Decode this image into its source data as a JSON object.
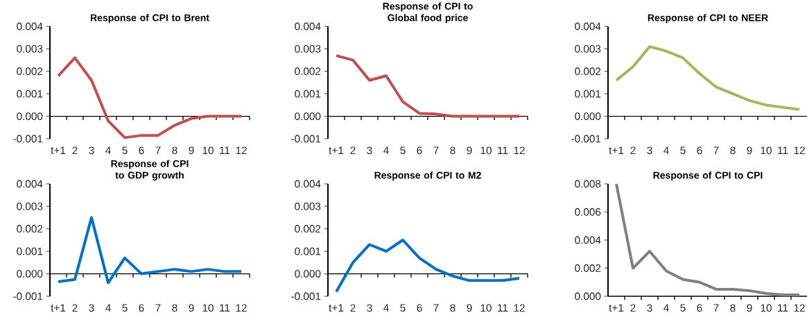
{
  "chart_data": [
    {
      "type": "line",
      "title": "Response of CPI to Brent",
      "categories": [
        "t+1",
        "2",
        "3",
        "4",
        "5",
        "6",
        "7",
        "8",
        "9",
        "10",
        "11",
        "12"
      ],
      "values": [
        0.0018,
        0.0026,
        0.0016,
        -0.0002,
        -0.00095,
        -0.00085,
        -0.00085,
        -0.0004,
        -0.0001,
        0.0,
        0.0,
        0.0
      ],
      "color": "#c0504d",
      "ylim": [
        -0.001,
        0.004
      ],
      "yticks": [
        {
          "value": -0.001,
          "label": "-0.001"
        },
        {
          "value": 0,
          "label": "0.000"
        },
        {
          "value": 0.001,
          "label": "0.001"
        },
        {
          "value": 0.002,
          "label": "0.002"
        },
        {
          "value": 0.003,
          "label": "0.003"
        },
        {
          "value": 0.004,
          "label": "0.004"
        }
      ]
    },
    {
      "type": "line",
      "title": "Response of CPI to Global food price",
      "categories": [
        "t+1",
        "2",
        "3",
        "4",
        "5",
        "6",
        "7",
        "8",
        "9",
        "10",
        "11",
        "12"
      ],
      "values": [
        0.0027,
        0.0025,
        0.0016,
        0.0018,
        0.00065,
        0.00013,
        0.0001,
        0.0,
        0.0,
        0.0,
        0.0,
        0.0
      ],
      "color": "#c0504d",
      "ylim": [
        -0.001,
        0.004
      ],
      "yticks": [
        {
          "value": -0.001,
          "label": "-0.001"
        },
        {
          "value": 0,
          "label": "0.000"
        },
        {
          "value": 0.001,
          "label": "0.001"
        },
        {
          "value": 0.002,
          "label": "0.002"
        },
        {
          "value": 0.003,
          "label": "0.003"
        },
        {
          "value": 0.004,
          "label": "0.004"
        }
      ]
    },
    {
      "type": "line",
      "title": "Response of CPI to NEER",
      "categories": [
        "t+1",
        "2",
        "3",
        "4",
        "5",
        "6",
        "7",
        "8",
        "9",
        "10",
        "11",
        "12"
      ],
      "values": [
        0.0016,
        0.0022,
        0.0031,
        0.0029,
        0.0026,
        0.0019,
        0.0013,
        0.001,
        0.0007,
        0.0005,
        0.0004,
        0.0003
      ],
      "color": "#9bbb59",
      "ylim": [
        -0.001,
        0.004
      ],
      "yticks": [
        {
          "value": -0.001,
          "label": "-0.001"
        },
        {
          "value": 0,
          "label": "0.000"
        },
        {
          "value": 0.001,
          "label": "0.001"
        },
        {
          "value": 0.002,
          "label": "0.002"
        },
        {
          "value": 0.003,
          "label": "0.003"
        },
        {
          "value": 0.004,
          "label": "0.004"
        }
      ]
    },
    {
      "type": "line",
      "title": "Response of CPI to GDP growth",
      "categories": [
        "t+1",
        "2",
        "3",
        "4",
        "5",
        "6",
        "7",
        "8",
        "9",
        "10",
        "11",
        "12"
      ],
      "values": [
        -0.00035,
        -0.00025,
        0.0025,
        -0.0004,
        0.0007,
        0.0,
        0.0001,
        0.0002,
        0.0001,
        0.0002,
        0.0001,
        0.0001
      ],
      "color": "#0070c0",
      "ylim": [
        -0.001,
        0.004
      ],
      "yticks": [
        {
          "value": -0.001,
          "label": "-0.001"
        },
        {
          "value": 0,
          "label": "0.000"
        },
        {
          "value": 0.001,
          "label": "0.001"
        },
        {
          "value": 0.002,
          "label": "0.002"
        },
        {
          "value": 0.003,
          "label": "0.003"
        },
        {
          "value": 0.004,
          "label": "0.004"
        }
      ]
    },
    {
      "type": "line",
      "title": "Response of CPI to M2",
      "categories": [
        "t+1",
        "2",
        "3",
        "4",
        "5",
        "6",
        "7",
        "8",
        "9",
        "10",
        "11",
        "12"
      ],
      "values": [
        -0.0008,
        0.0005,
        0.0013,
        0.001,
        0.0015,
        0.0007,
        0.0002,
        -0.0001,
        -0.0003,
        -0.0003,
        -0.0003,
        -0.0002
      ],
      "color": "#0070c0",
      "ylim": [
        -0.001,
        0.004
      ],
      "yticks": [
        {
          "value": -0.001,
          "label": "-0.001"
        },
        {
          "value": 0,
          "label": "0.000"
        },
        {
          "value": 0.001,
          "label": "0.001"
        },
        {
          "value": 0.002,
          "label": "0.002"
        },
        {
          "value": 0.003,
          "label": "0.003"
        },
        {
          "value": 0.004,
          "label": "0.004"
        }
      ]
    },
    {
      "type": "line",
      "title": "Response of CPI to CPI",
      "categories": [
        "t+1",
        "2",
        "3",
        "4",
        "5",
        "6",
        "7",
        "8",
        "9",
        "10",
        "11",
        "12"
      ],
      "values": [
        0.008,
        0.002,
        0.0032,
        0.0018,
        0.0012,
        0.001,
        0.0005,
        0.0005,
        0.0004,
        0.0002,
        0.0001,
        0.0001
      ],
      "color": "#808080",
      "ylim": [
        0,
        0.008
      ],
      "yticks": [
        {
          "value": 0,
          "label": "0.000"
        },
        {
          "value": 0.002,
          "label": "0.002"
        },
        {
          "value": 0.004,
          "label": "0.004"
        },
        {
          "value": 0.006,
          "label": "0.006"
        },
        {
          "value": 0.008,
          "label": "0.008"
        }
      ]
    }
  ]
}
